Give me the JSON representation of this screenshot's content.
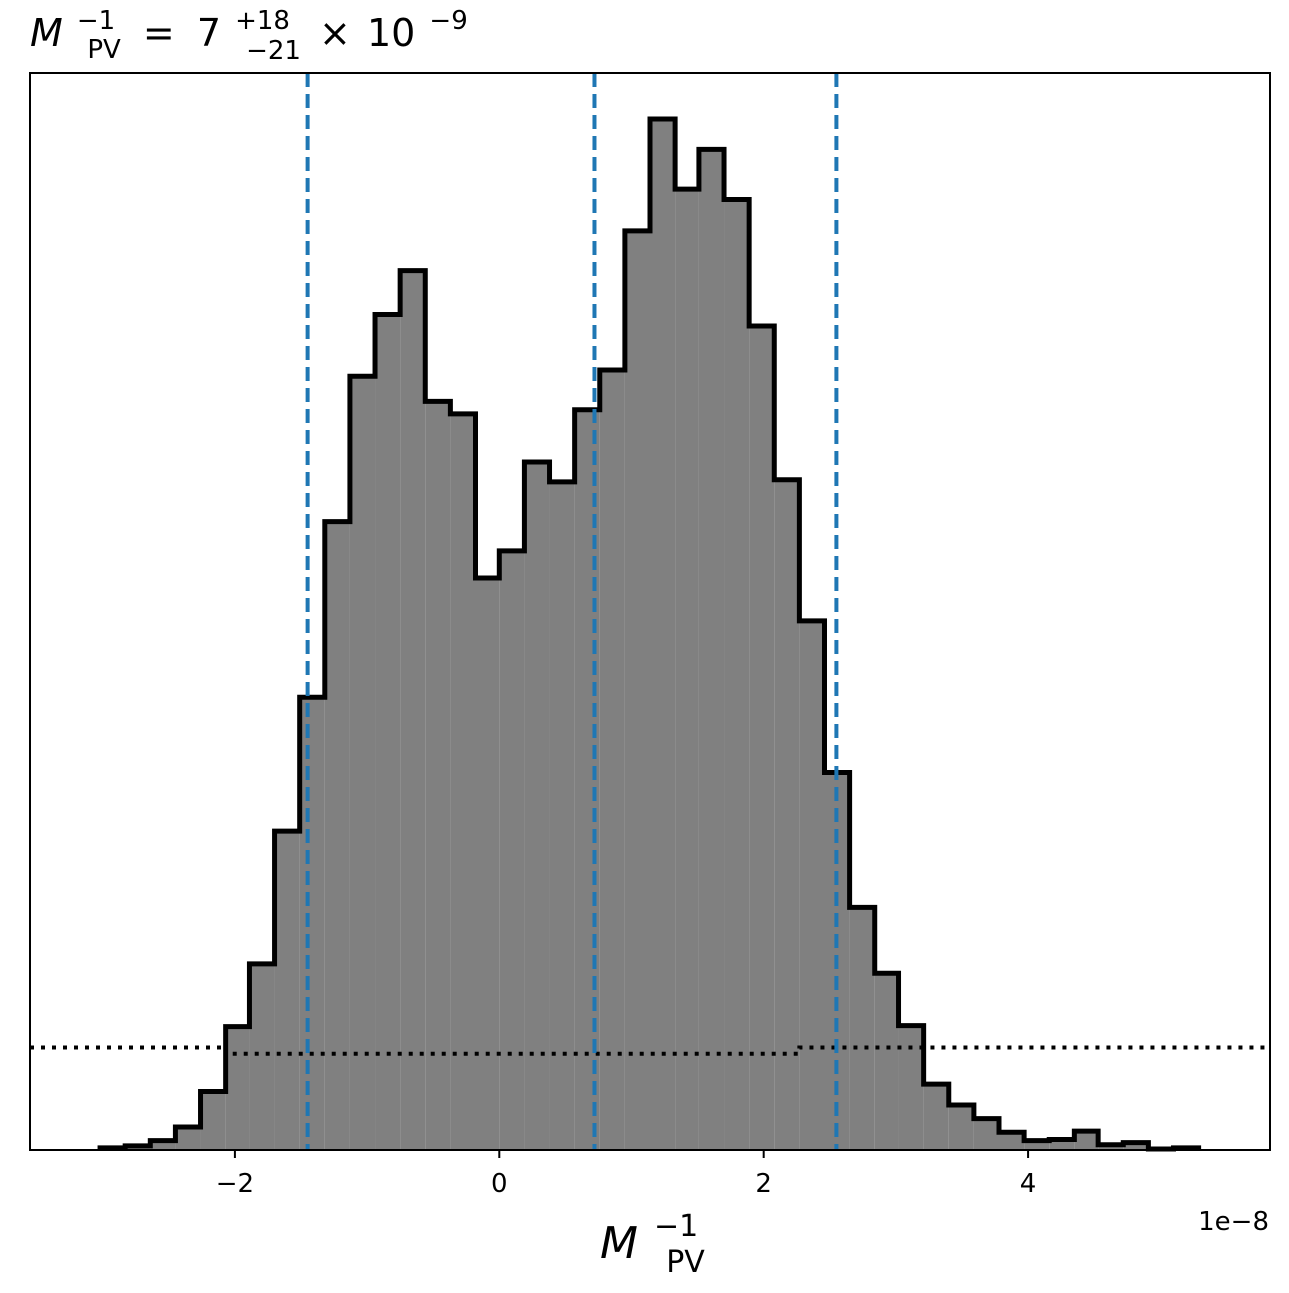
{
  "chart_data": {
    "type": "histogram",
    "title": {
      "symbol": "M",
      "symbol_sup": "−1",
      "symbol_sub": "PV",
      "equals": "=",
      "value": "7",
      "err_plus": "+18",
      "err_minus": "−21",
      "times": "×",
      "power_base": "10",
      "power_exp": "−9"
    },
    "xlabel": {
      "symbol": "M",
      "sup": "−1",
      "sub": "PV"
    },
    "offset_text": "1e−8",
    "x_scale_factor": 1e-08,
    "xlim": [
      -3.55,
      5.83
    ],
    "xticks": [
      -2,
      0,
      2,
      4
    ],
    "xtick_labels": [
      "−2",
      "0",
      "2",
      "4"
    ],
    "y_ticks_visible": false,
    "bins": [
      {
        "x0": -3.02,
        "x1": -2.83,
        "count": 0.2
      },
      {
        "x0": -2.83,
        "x1": -2.64,
        "count": 0.4
      },
      {
        "x0": -2.64,
        "x1": -2.45,
        "count": 0.9
      },
      {
        "x0": -2.45,
        "x1": -2.26,
        "count": 2.2
      },
      {
        "x0": -2.26,
        "x1": -2.07,
        "count": 5.6
      },
      {
        "x0": -2.07,
        "x1": -1.89,
        "count": 11.8
      },
      {
        "x0": -1.89,
        "x1": -1.7,
        "count": 17.8
      },
      {
        "x0": -1.7,
        "x1": -1.51,
        "count": 30.5
      },
      {
        "x0": -1.51,
        "x1": -1.32,
        "count": 43.3
      },
      {
        "x0": -1.32,
        "x1": -1.13,
        "count": 60.1
      },
      {
        "x0": -1.13,
        "x1": -0.94,
        "count": 74.0
      },
      {
        "x0": -0.94,
        "x1": -0.75,
        "count": 79.9
      },
      {
        "x0": -0.75,
        "x1": -0.56,
        "count": 84.1
      },
      {
        "x0": -0.56,
        "x1": -0.37,
        "count": 71.6
      },
      {
        "x0": -0.37,
        "x1": -0.18,
        "count": 70.4
      },
      {
        "x0": -0.18,
        "x1": 0.0,
        "count": 54.7
      },
      {
        "x0": 0.0,
        "x1": 0.19,
        "count": 57.3
      },
      {
        "x0": 0.19,
        "x1": 0.38,
        "count": 65.8
      },
      {
        "x0": 0.38,
        "x1": 0.57,
        "count": 63.9
      },
      {
        "x0": 0.57,
        "x1": 0.76,
        "count": 70.8
      },
      {
        "x0": 0.76,
        "x1": 0.95,
        "count": 74.6
      },
      {
        "x0": 0.95,
        "x1": 1.14,
        "count": 87.9
      },
      {
        "x0": 1.14,
        "x1": 1.33,
        "count": 98.6
      },
      {
        "x0": 1.33,
        "x1": 1.51,
        "count": 91.9
      },
      {
        "x0": 1.51,
        "x1": 1.7,
        "count": 95.7
      },
      {
        "x0": 1.7,
        "x1": 1.89,
        "count": 90.9
      },
      {
        "x0": 1.89,
        "x1": 2.08,
        "count": 78.8
      },
      {
        "x0": 2.08,
        "x1": 2.27,
        "count": 64.1
      },
      {
        "x0": 2.27,
        "x1": 2.46,
        "count": 50.6
      },
      {
        "x0": 2.46,
        "x1": 2.65,
        "count": 36.1
      },
      {
        "x0": 2.65,
        "x1": 2.84,
        "count": 23.2
      },
      {
        "x0": 2.84,
        "x1": 3.02,
        "count": 16.9
      },
      {
        "x0": 3.02,
        "x1": 3.21,
        "count": 11.9
      },
      {
        "x0": 3.21,
        "x1": 3.4,
        "count": 6.3
      },
      {
        "x0": 3.4,
        "x1": 3.59,
        "count": 4.3
      },
      {
        "x0": 3.59,
        "x1": 3.78,
        "count": 3.0
      },
      {
        "x0": 3.78,
        "x1": 3.97,
        "count": 1.7
      },
      {
        "x0": 3.97,
        "x1": 4.16,
        "count": 0.9
      },
      {
        "x0": 4.16,
        "x1": 4.35,
        "count": 1.0
      },
      {
        "x0": 4.35,
        "x1": 4.53,
        "count": 1.8
      },
      {
        "x0": 4.53,
        "x1": 4.72,
        "count": 0.5
      },
      {
        "x0": 4.72,
        "x1": 4.91,
        "count": 0.7
      },
      {
        "x0": 4.91,
        "x1": 5.1,
        "count": 0.1
      },
      {
        "x0": 5.1,
        "x1": 5.29,
        "count": 0.2
      }
    ],
    "ylim": [
      0,
      103
    ],
    "quantile_lines": [
      -1.45,
      0.72,
      2.55
    ],
    "prior_line": [
      {
        "x0": -3.55,
        "x1": -2.07,
        "y": 9.8
      },
      {
        "x0": -2.07,
        "x1": 2.27,
        "y": 9.2
      },
      {
        "x0": 2.27,
        "x1": 5.83,
        "y": 9.8
      }
    ],
    "colors": {
      "fill": "#808080",
      "outline": "#000000",
      "quantile": "#1f77b4",
      "prior": "#000000",
      "axes": "#000000"
    }
  }
}
